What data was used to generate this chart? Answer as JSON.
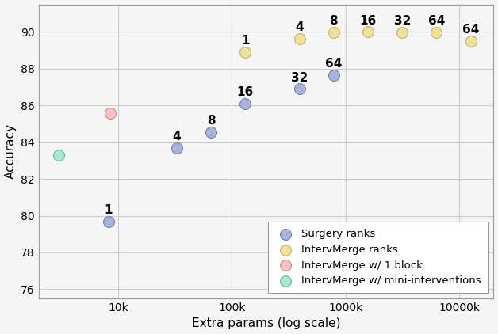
{
  "surgery_ranks": {
    "x": [
      8192,
      32768,
      65536,
      131072,
      393216,
      786432
    ],
    "y": [
      79.7,
      83.7,
      84.55,
      86.1,
      86.9,
      87.65
    ],
    "labels": [
      "1",
      "4",
      "8",
      "16",
      "32",
      "64"
    ],
    "color": "#aab4d8",
    "edge_color": "#7080b8"
  },
  "interv_ranks": {
    "x": [
      131072,
      393216,
      786432,
      1572864,
      3145728,
      6291456,
      12582912
    ],
    "y": [
      88.9,
      89.62,
      89.98,
      90.0,
      89.97,
      89.97,
      89.5
    ],
    "labels": [
      "1",
      "4",
      "8",
      "16",
      "32",
      "64",
      "64"
    ],
    "color": "#f0e0a0",
    "edge_color": "#c8b060"
  },
  "interv_1block": {
    "x": [
      8500
    ],
    "y": [
      85.6
    ],
    "color": "#f8c0c0",
    "edge_color": "#d88888"
  },
  "interv_mini": {
    "x": [
      3000
    ],
    "y": [
      83.3
    ],
    "color": "#a8e8d0",
    "edge_color": "#60c090"
  },
  "xlabel": "Extra params (log scale)",
  "ylabel": "Accuracy",
  "ylim": [
    75.5,
    91.5
  ],
  "xlim_log": [
    2000,
    20000000
  ],
  "xticks": [
    10000,
    100000,
    1000000,
    10000000
  ],
  "xtick_labels": [
    "10k",
    "100k",
    "1000k",
    "10000k"
  ],
  "yticks": [
    76,
    78,
    80,
    82,
    84,
    86,
    88,
    90
  ],
  "grid_color": "#cccccc",
  "bg_color": "#f5f5f5",
  "legend_entries": [
    {
      "label": "Surgery ranks",
      "color": "#aab4d8",
      "edge_color": "#7080b8"
    },
    {
      "label": "IntervMerge ranks",
      "color": "#f0e0a0",
      "edge_color": "#c8b060"
    },
    {
      "label": "IntervMerge w/ 1 block",
      "color": "#f8c0c0",
      "edge_color": "#d88888"
    },
    {
      "label": "IntervMerge w/ mini-interventions",
      "color": "#a8e8d0",
      "edge_color": "#60c090"
    }
  ],
  "marker_size": 100,
  "label_fontsize": 11,
  "axis_fontsize": 11,
  "legend_fontsize": 9.5
}
